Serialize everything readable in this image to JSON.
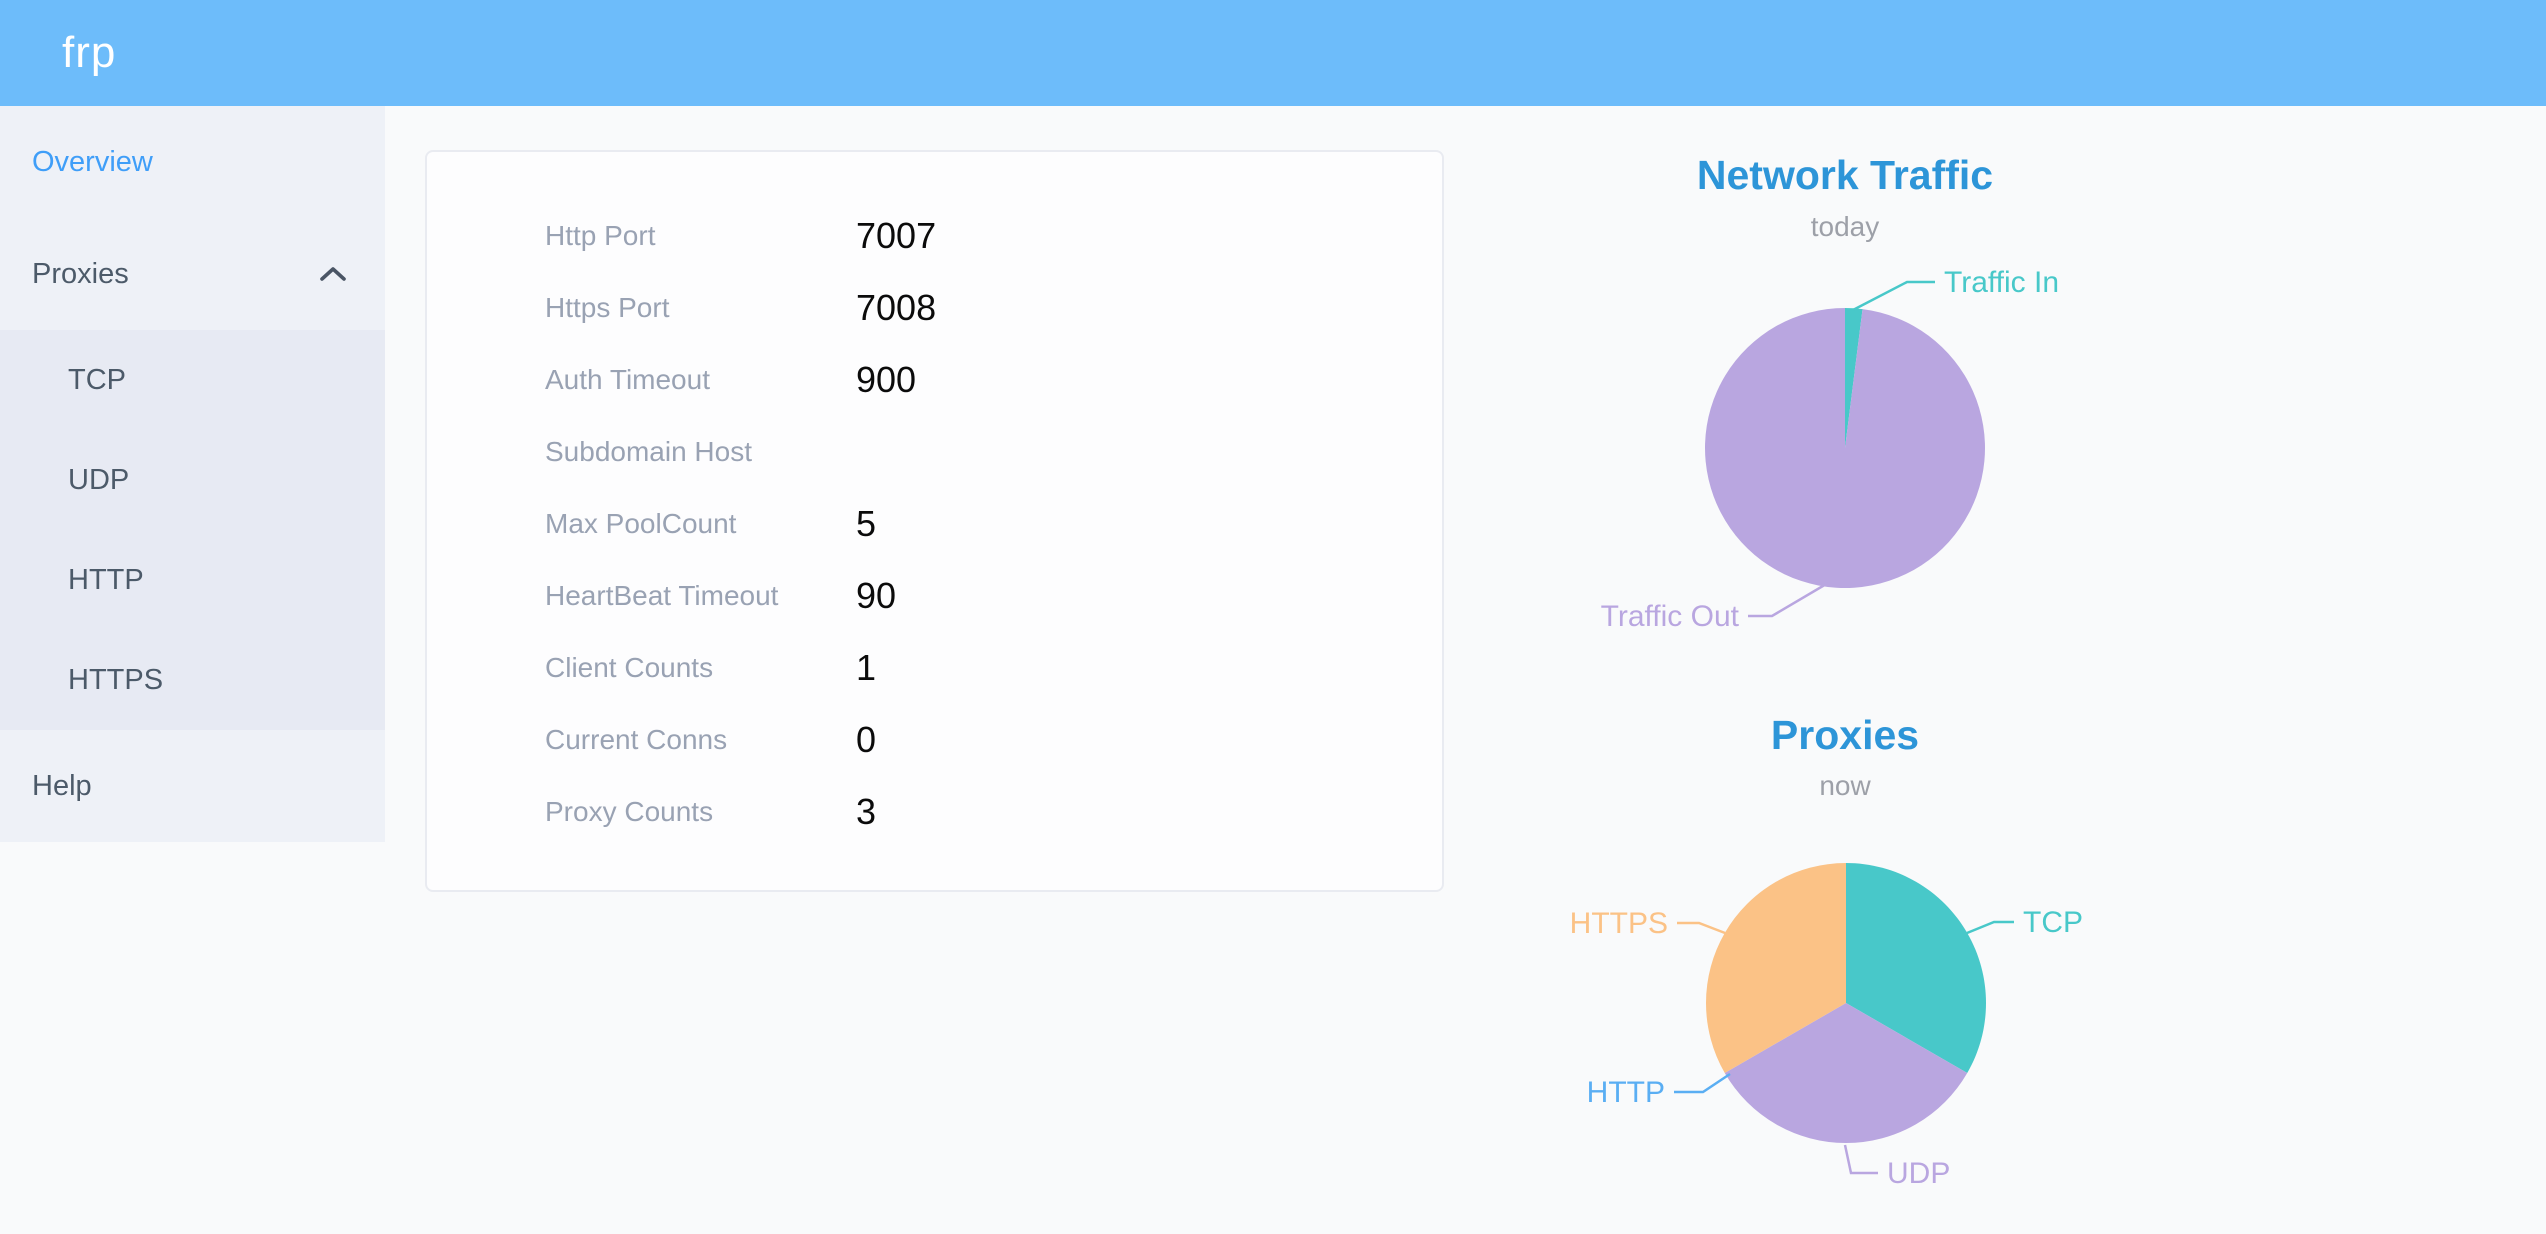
{
  "header": {
    "logo": "frp"
  },
  "sidebar": {
    "items": [
      {
        "label": "Overview",
        "active": true
      },
      {
        "label": "Proxies",
        "expanded": true,
        "children": [
          "TCP",
          "UDP",
          "HTTP",
          "HTTPS"
        ]
      },
      {
        "label": "Help"
      }
    ]
  },
  "card": {
    "rows": [
      {
        "label": "Http Port",
        "value": "7007"
      },
      {
        "label": "Https Port",
        "value": "7008"
      },
      {
        "label": "Auth Timeout",
        "value": "900"
      },
      {
        "label": "Subdomain Host",
        "value": ""
      },
      {
        "label": "Max PoolCount",
        "value": "5"
      },
      {
        "label": "HeartBeat Timeout",
        "value": "90"
      },
      {
        "label": "Client Counts",
        "value": "1"
      },
      {
        "label": "Current Conns",
        "value": "0"
      },
      {
        "label": "Proxy Counts",
        "value": "3"
      }
    ]
  },
  "chart_data": [
    {
      "type": "pie",
      "title": "Network Traffic",
      "subtitle": "today",
      "legend_position": "outside-callout",
      "series": [
        {
          "name": "Traffic In",
          "value": 2,
          "color": "#48c8c9"
        },
        {
          "name": "Traffic Out",
          "value": 98,
          "color": "#b9a6e0"
        }
      ],
      "note": "values are depicted proportions (percent of pie)"
    },
    {
      "type": "pie",
      "title": "Proxies",
      "subtitle": "now",
      "legend_position": "outside-callout",
      "series": [
        {
          "name": "TCP",
          "value": 1,
          "color": "#48c8c9"
        },
        {
          "name": "UDP",
          "value": 1,
          "color": "#b9a6e0"
        },
        {
          "name": "HTTP",
          "value": 0,
          "color": "#5aaef3"
        },
        {
          "name": "HTTPS",
          "value": 1,
          "color": "#fbc286"
        }
      ]
    }
  ],
  "colors": {
    "header_bg": "#6dbcfa",
    "page_bg": "#f9fafb",
    "sidebar_bg": "#eef1f7",
    "submenu_bg": "#e7eaf3",
    "menu_active": "#3f9ef8",
    "chart_title": "#2d95d8",
    "teal": "#48c8c9",
    "purple": "#b9a6e0",
    "blue": "#5aaef3",
    "orange": "#fbc286"
  }
}
